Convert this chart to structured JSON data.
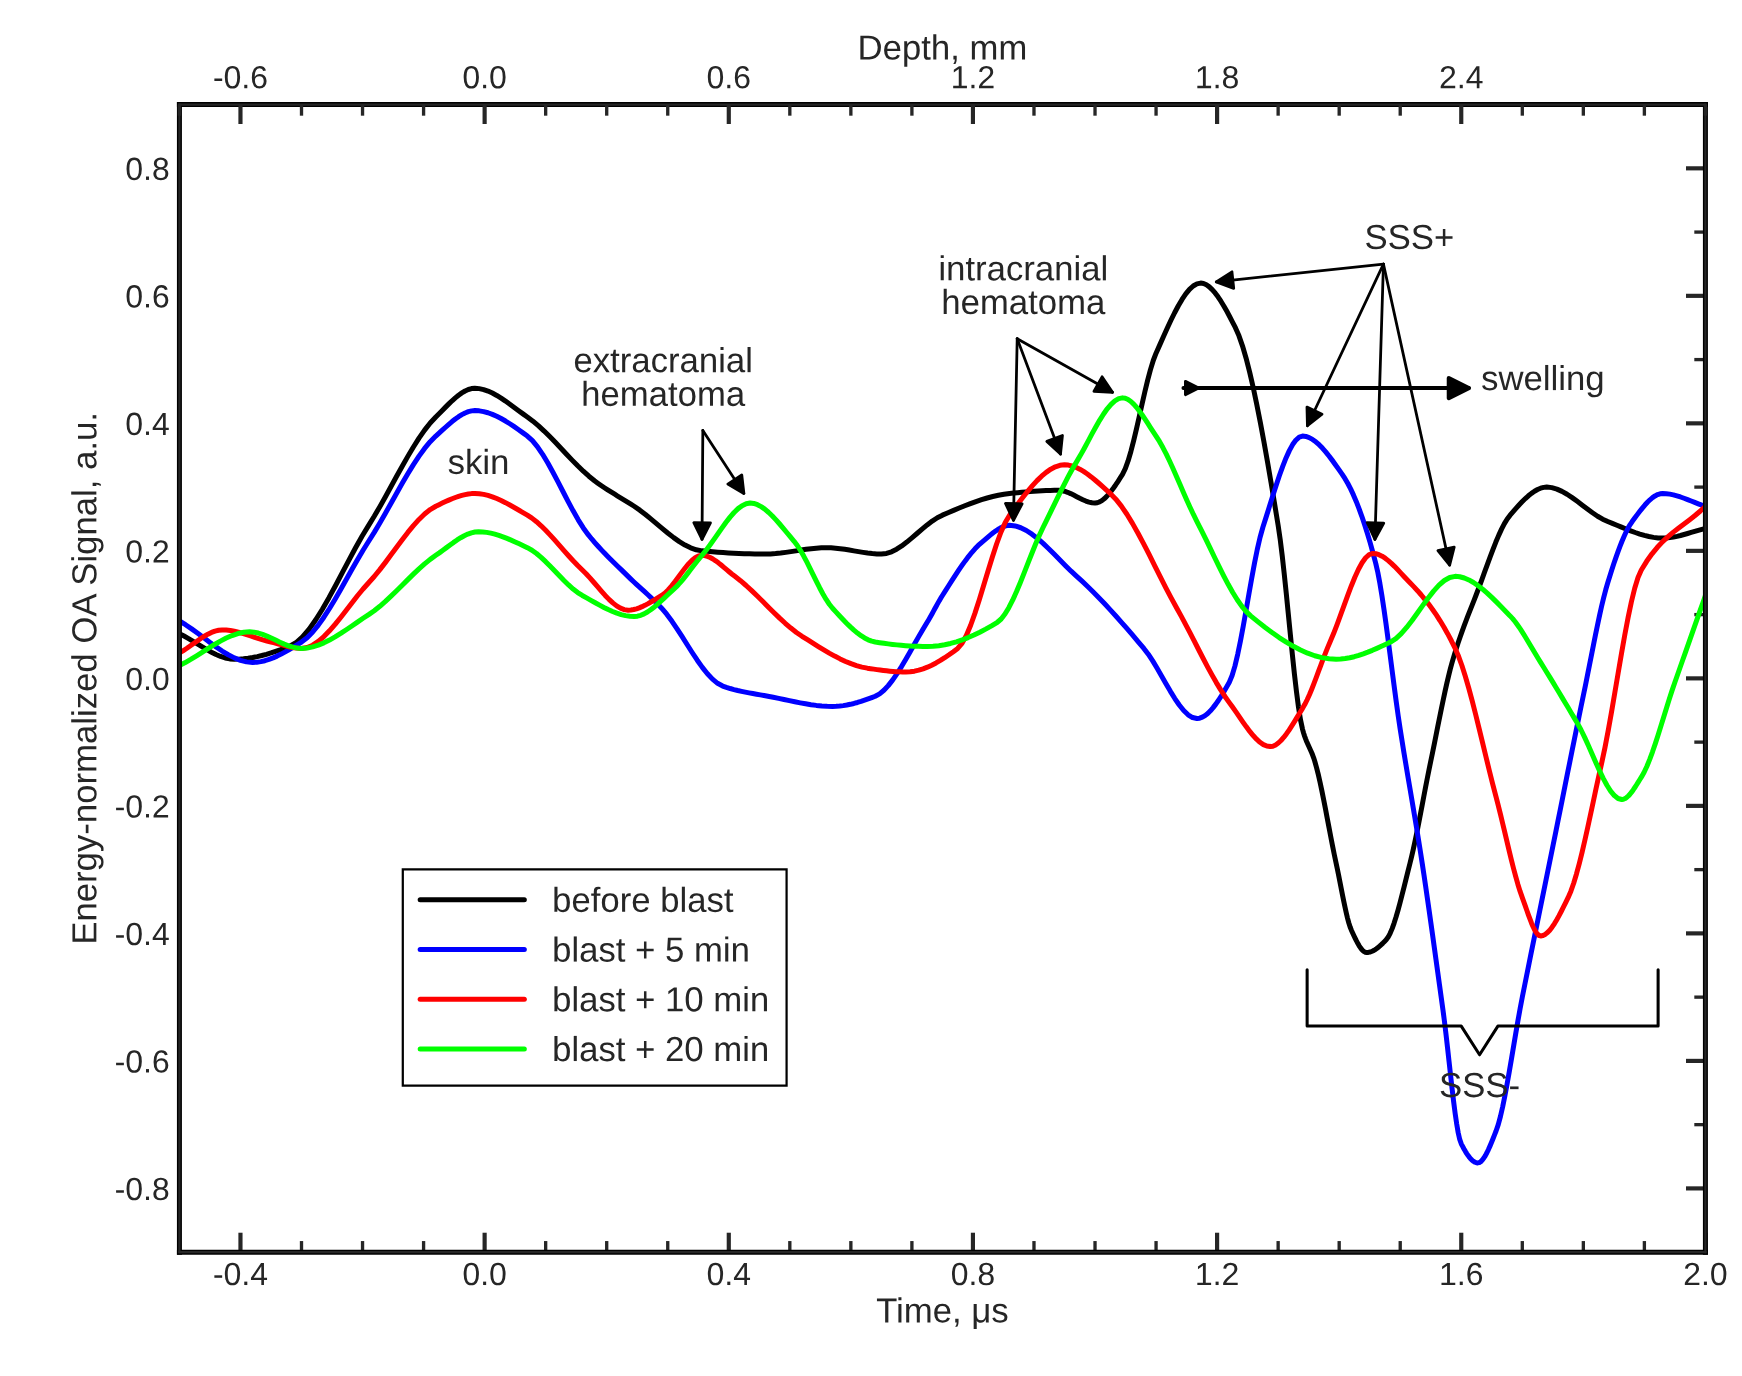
{
  "chart_data": {
    "type": "line",
    "xlabel": "Time, μs",
    "ylabel": "Energy-normalized OA Signal, a.u.",
    "x2label": "Depth, mm",
    "xlim": [
      -0.5,
      2.0
    ],
    "xticks": [
      -0.4,
      {
        "value": 0.0,
        "label": "0.0"
      },
      0.4,
      0.8,
      1.2,
      1.6,
      {
        "value": 2.0,
        "label": "2.0"
      }
    ],
    "ylim": [
      -0.9,
      0.9
    ],
    "yticks": [
      -0.8,
      -0.6,
      -0.4,
      -0.2,
      {
        "value": 0.0,
        "label": "0.0"
      },
      0.2,
      0.4,
      0.6,
      0.8
    ],
    "x2lim": [
      -0.75,
      3.0
    ],
    "x2ticks": [
      -0.6,
      {
        "value": 0.0,
        "label": "0.0"
      },
      0.6,
      1.2,
      1.8,
      2.4
    ],
    "grid": false,
    "legend": "bottom left",
    "line_style": "solid",
    "marker": "none",
    "series": [
      {
        "name": "before blast",
        "color": "#000000",
        "x": [
          -0.5,
          -0.41,
          -0.32,
          -0.19,
          -0.08,
          -0.016,
          0.07,
          0.18,
          0.245,
          0.356,
          0.46,
          0.56,
          0.65,
          0.75,
          0.86,
          0.94,
          1.0,
          1.045,
          1.1,
          1.173,
          1.23,
          1.3,
          1.34,
          1.36,
          1.395,
          1.42,
          1.445,
          1.477,
          1.516,
          1.55,
          1.585,
          1.624,
          1.68,
          1.74,
          1.84,
          1.93,
          2.0
        ],
        "values": [
          0.07,
          0.03,
          0.05,
          0.24,
          0.41,
          0.455,
          0.41,
          0.31,
          0.27,
          0.2,
          0.195,
          0.205,
          0.195,
          0.256,
          0.29,
          0.295,
          0.275,
          0.32,
          0.51,
          0.62,
          0.55,
          0.24,
          -0.08,
          -0.13,
          -0.29,
          -0.395,
          -0.43,
          -0.41,
          -0.29,
          -0.13,
          0.025,
          0.13,
          0.256,
          0.3,
          0.246,
          0.22,
          0.235
        ]
      },
      {
        "name": "blast + 5 min",
        "color": "#0000ff",
        "x": [
          -0.5,
          -0.38,
          -0.3,
          -0.19,
          -0.08,
          -0.016,
          0.07,
          0.17,
          0.235,
          0.29,
          0.39,
          0.464,
          0.57,
          0.64,
          0.725,
          0.75,
          0.814,
          0.86,
          0.97,
          1.08,
          1.167,
          1.22,
          1.275,
          1.34,
          1.405,
          1.46,
          1.5,
          1.536,
          1.57,
          1.6,
          1.627,
          1.657,
          1.7,
          1.755,
          1.8,
          1.84,
          1.88,
          1.93,
          2.0
        ],
        "values": [
          0.09,
          0.025,
          0.057,
          0.215,
          0.38,
          0.42,
          0.38,
          0.225,
          0.16,
          0.11,
          -0.012,
          -0.028,
          -0.044,
          -0.028,
          0.088,
          0.13,
          0.213,
          0.24,
          0.16,
          0.047,
          -0.063,
          -0.006,
          0.237,
          0.38,
          0.32,
          0.18,
          -0.08,
          -0.29,
          -0.52,
          -0.73,
          -0.76,
          -0.71,
          -0.5,
          -0.24,
          -0.027,
          0.15,
          0.246,
          0.29,
          0.27
        ]
      },
      {
        "name": "blast + 10 min",
        "color": "#ff0000",
        "x": [
          -0.5,
          -0.43,
          -0.35,
          -0.3,
          -0.19,
          -0.08,
          -0.016,
          0.07,
          0.16,
          0.235,
          0.29,
          0.356,
          0.41,
          0.52,
          0.627,
          0.69,
          0.775,
          0.86,
          0.95,
          1.025,
          1.134,
          1.22,
          1.287,
          1.34,
          1.385,
          1.455,
          1.516,
          1.59,
          1.657,
          1.7,
          1.73,
          1.775,
          1.83,
          1.895,
          2.0
        ],
        "values": [
          0.04,
          0.076,
          0.057,
          0.047,
          0.15,
          0.27,
          0.29,
          0.256,
          0.17,
          0.107,
          0.13,
          0.193,
          0.16,
          0.066,
          0.016,
          0.01,
          0.047,
          0.256,
          0.335,
          0.29,
          0.11,
          -0.038,
          -0.107,
          -0.047,
          0.057,
          0.196,
          0.15,
          0.047,
          -0.186,
          -0.344,
          -0.404,
          -0.344,
          -0.133,
          0.17,
          0.27
        ]
      },
      {
        "name": "blast + 20 min",
        "color": "#00ff00",
        "x": [
          -0.5,
          -0.385,
          -0.3,
          -0.19,
          -0.08,
          -0.01,
          0.07,
          0.16,
          0.245,
          0.31,
          0.356,
          0.435,
          0.507,
          0.57,
          0.64,
          0.725,
          0.84,
          0.915,
          0.97,
          1.045,
          1.1,
          1.167,
          1.255,
          1.395,
          1.484,
          1.59,
          1.68,
          1.73,
          1.79,
          1.863,
          1.895,
          1.95,
          2.0
        ],
        "values": [
          0.02,
          0.073,
          0.047,
          0.1,
          0.193,
          0.23,
          0.205,
          0.13,
          0.097,
          0.14,
          0.193,
          0.275,
          0.215,
          0.11,
          0.057,
          0.05,
          0.088,
          0.237,
          0.34,
          0.44,
          0.38,
          0.246,
          0.098,
          0.03,
          0.057,
          0.16,
          0.098,
          0.025,
          -0.07,
          -0.19,
          -0.155,
          -0.006,
          0.13
        ]
      }
    ],
    "annotations": [
      "skin",
      {
        "text": "extracranial\nhematoma",
        "x": 0.435,
        "y": 0.275
      },
      {
        "text": "intracranial\nhematoma",
        "x": 0.866,
        "y": 0.23
      },
      {
        "text": "SSS+",
        "x": 1.18,
        "y": 0.62
      },
      "swelling",
      "SSS-"
    ]
  }
}
